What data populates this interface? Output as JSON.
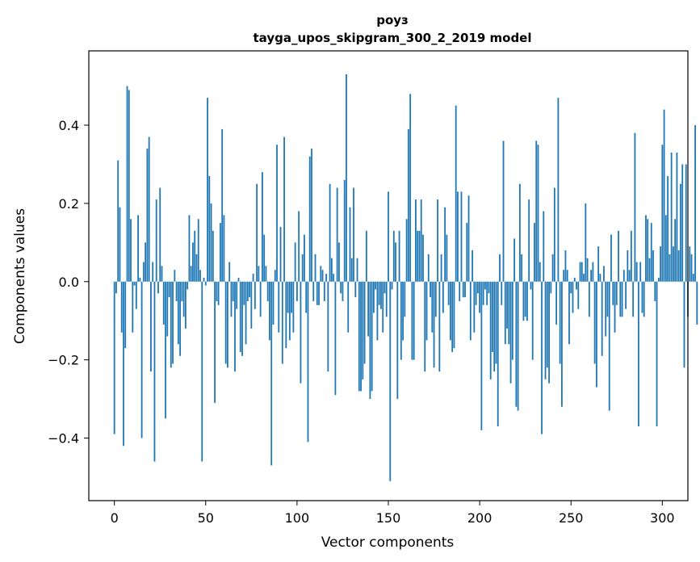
{
  "chart_data": {
    "type": "bar",
    "title": "роуз",
    "subtitle": "tayga_upos_skipgram_300_2_2019 model",
    "xlabel": "Vector components",
    "ylabel": "Components values",
    "xlim": [
      -14,
      314
    ],
    "ylim": [
      -0.56,
      0.59
    ],
    "xticks": [
      0,
      50,
      100,
      150,
      200,
      250,
      300
    ],
    "yticks": [
      -0.4,
      -0.2,
      0.0,
      0.2,
      0.4
    ],
    "ytick_labels": [
      "−0.4",
      "−0.2",
      "0.0",
      "0.2",
      "0.4"
    ],
    "grid": false,
    "bar_color": "#1f77b4",
    "values": [
      -0.39,
      -0.03,
      0.31,
      0.19,
      -0.13,
      -0.42,
      -0.17,
      0.5,
      0.49,
      0.16,
      -0.13,
      -0.01,
      -0.07,
      0.17,
      0.01,
      -0.4,
      0.05,
      0.1,
      0.34,
      0.37,
      -0.23,
      0.05,
      -0.46,
      0.21,
      -0.03,
      0.24,
      0.04,
      -0.11,
      -0.35,
      -0.14,
      -0.04,
      -0.22,
      -0.21,
      0.03,
      -0.05,
      -0.16,
      -0.19,
      -0.05,
      -0.09,
      -0.12,
      -0.02,
      0.17,
      0.04,
      0.1,
      0.13,
      0.07,
      0.16,
      0.03,
      -0.46,
      0.01,
      -0.01,
      0.47,
      0.27,
      0.2,
      0.13,
      -0.31,
      -0.05,
      -0.06,
      0.15,
      0.39,
      0.17,
      -0.21,
      -0.22,
      0.05,
      -0.09,
      -0.05,
      -0.23,
      -0.07,
      0.01,
      -0.18,
      -0.19,
      -0.06,
      -0.16,
      -0.05,
      -0.04,
      -0.12,
      0.02,
      -0.07,
      0.25,
      0.04,
      -0.09,
      0.28,
      0.12,
      0.04,
      -0.05,
      -0.15,
      -0.47,
      -0.11,
      0.03,
      0.35,
      -0.13,
      0.14,
      -0.21,
      0.37,
      -0.17,
      -0.08,
      -0.15,
      -0.08,
      -0.13,
      0.1,
      -0.05,
      0.18,
      -0.26,
      0.07,
      0.12,
      -0.08,
      -0.41,
      0.32,
      0.34,
      -0.05,
      0.07,
      -0.06,
      -0.06,
      0.04,
      0.03,
      -0.05,
      0.02,
      -0.23,
      0.25,
      0.06,
      0.02,
      -0.29,
      0.24,
      0.1,
      -0.03,
      -0.05,
      0.26,
      0.53,
      -0.13,
      0.19,
      0.06,
      0.24,
      -0.04,
      0.06,
      -0.28,
      -0.28,
      -0.25,
      -0.21,
      0.13,
      -0.14,
      -0.3,
      -0.28,
      -0.08,
      -0.02,
      -0.15,
      -0.06,
      -0.07,
      -0.13,
      -0.03,
      -0.09,
      0.23,
      -0.51,
      -0.02,
      0.13,
      0.1,
      -0.3,
      0.13,
      -0.2,
      -0.15,
      -0.09,
      0.16,
      0.39,
      0.48,
      -0.2,
      -0.2,
      0.21,
      0.13,
      0.13,
      0.21,
      0.12,
      -0.23,
      -0.15,
      0.07,
      -0.04,
      -0.13,
      -0.22,
      -0.09,
      0.21,
      -0.23,
      0.07,
      -0.08,
      0.19,
      0.12,
      -0.06,
      -0.15,
      -0.18,
      -0.17,
      0.45,
      0.23,
      -0.05,
      0.23,
      -0.04,
      -0.04,
      0.15,
      0.22,
      -0.15,
      0.08,
      -0.13,
      -0.06,
      -0.03,
      -0.08,
      -0.38,
      -0.06,
      -0.02,
      -0.06,
      -0.03,
      -0.25,
      -0.18,
      -0.23,
      -0.21,
      -0.37,
      0.07,
      -0.06,
      0.36,
      -0.16,
      -0.12,
      -0.16,
      -0.26,
      -0.2,
      0.11,
      -0.32,
      -0.33,
      0.25,
      0.07,
      -0.1,
      -0.09,
      -0.1,
      0.21,
      -0.02,
      -0.2,
      0.15,
      0.36,
      0.35,
      0.05,
      -0.39,
      0.18,
      -0.25,
      -0.22,
      -0.26,
      -0.03,
      0.07,
      0.24,
      -0.11,
      0.47,
      -0.21,
      -0.32,
      0.03,
      0.08,
      0.03,
      -0.16,
      -0.03,
      -0.08,
      0.01,
      -0.02,
      -0.07,
      0.05,
      0.05,
      0.02,
      0.2,
      0.06,
      -0.09,
      0.03,
      0.05,
      -0.21,
      -0.27,
      0.09,
      0.02,
      -0.19,
      0.04,
      -0.14,
      -0.09,
      -0.33,
      0.12,
      -0.06,
      -0.13,
      -0.06,
      0.13,
      -0.09,
      -0.09,
      0.03,
      -0.07,
      0.08,
      0.03,
      0.13,
      -0.09,
      0.38,
      0.05,
      -0.37,
      0.05,
      -0.08,
      -0.09,
      0.17,
      0.16,
      0.06,
      0.15,
      0.08,
      -0.05,
      -0.37,
      0.01,
      0.09,
      0.35,
      0.44,
      0.17,
      0.27,
      0.07,
      0.33,
      0.09,
      0.16,
      0.33,
      0.08,
      0.25,
      0.3,
      -0.22,
      0.3,
      -0.09,
      0.09,
      0.07,
      0.02,
      0.4,
      -0.11
    ]
  }
}
